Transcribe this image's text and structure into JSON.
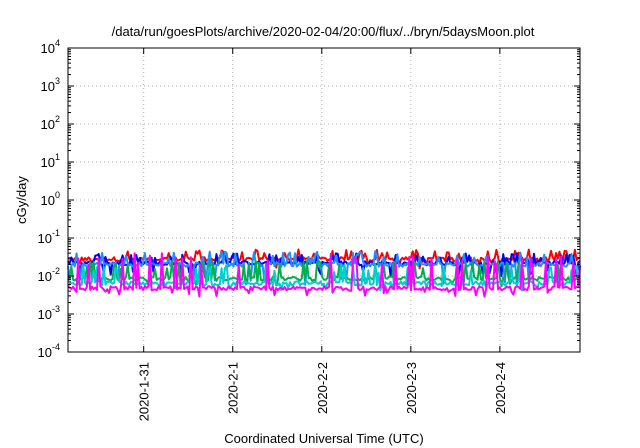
{
  "chart_data": {
    "type": "line",
    "title": "/data/run/goesPlots/archive/2020-02-04/20:00/flux/../bryn/5daysMoon.plot",
    "xlabel": "Coordinated Universal Time (UTC)",
    "ylabel": "cGy/day",
    "y_scale": "log",
    "ylim": [
      0.0001,
      10000
    ],
    "xlim_days": [
      -0.85,
      4.9
    ],
    "grid": true,
    "y_ticks": [
      {
        "base": "10",
        "exp": "-4",
        "value": 0.0001
      },
      {
        "base": "10",
        "exp": "-3",
        "value": 0.001
      },
      {
        "base": "10",
        "exp": "-2",
        "value": 0.01
      },
      {
        "base": "10",
        "exp": "-1",
        "value": 0.1
      },
      {
        "base": "10",
        "exp": "0",
        "value": 1
      },
      {
        "base": "10",
        "exp": "1",
        "value": 10
      },
      {
        "base": "10",
        "exp": "2",
        "value": 100
      },
      {
        "base": "10",
        "exp": "3",
        "value": 1000
      },
      {
        "base": "10",
        "exp": "4",
        "value": 10000
      }
    ],
    "x_ticks": [
      {
        "label": "2020-1-31",
        "day": 0
      },
      {
        "label": "2020-2-1",
        "day": 1
      },
      {
        "label": "2020-2-2",
        "day": 2
      },
      {
        "label": "2020-2-3",
        "day": 3
      },
      {
        "label": "2020-2-4",
        "day": 4
      }
    ],
    "series": [
      {
        "color": "#ff0000",
        "baseline": 0.028,
        "spike": 0.05,
        "dip": 0.02
      },
      {
        "color": "#0000ff",
        "baseline": 0.022,
        "spike": 0.04,
        "dip": 0.012
      },
      {
        "color": "#1e90ff",
        "baseline": 0.02,
        "spike": 0.045,
        "dip": 0.007
      },
      {
        "color": "#00b050",
        "baseline": 0.0085,
        "spike": 0.025,
        "dip": 0.006
      },
      {
        "color": "#00ced1",
        "baseline": 0.0065,
        "spike": 0.02,
        "dip": 0.005
      },
      {
        "color": "#ff00ff",
        "baseline": 0.0048,
        "spike": 0.04,
        "dip": 0.0035
      }
    ]
  }
}
